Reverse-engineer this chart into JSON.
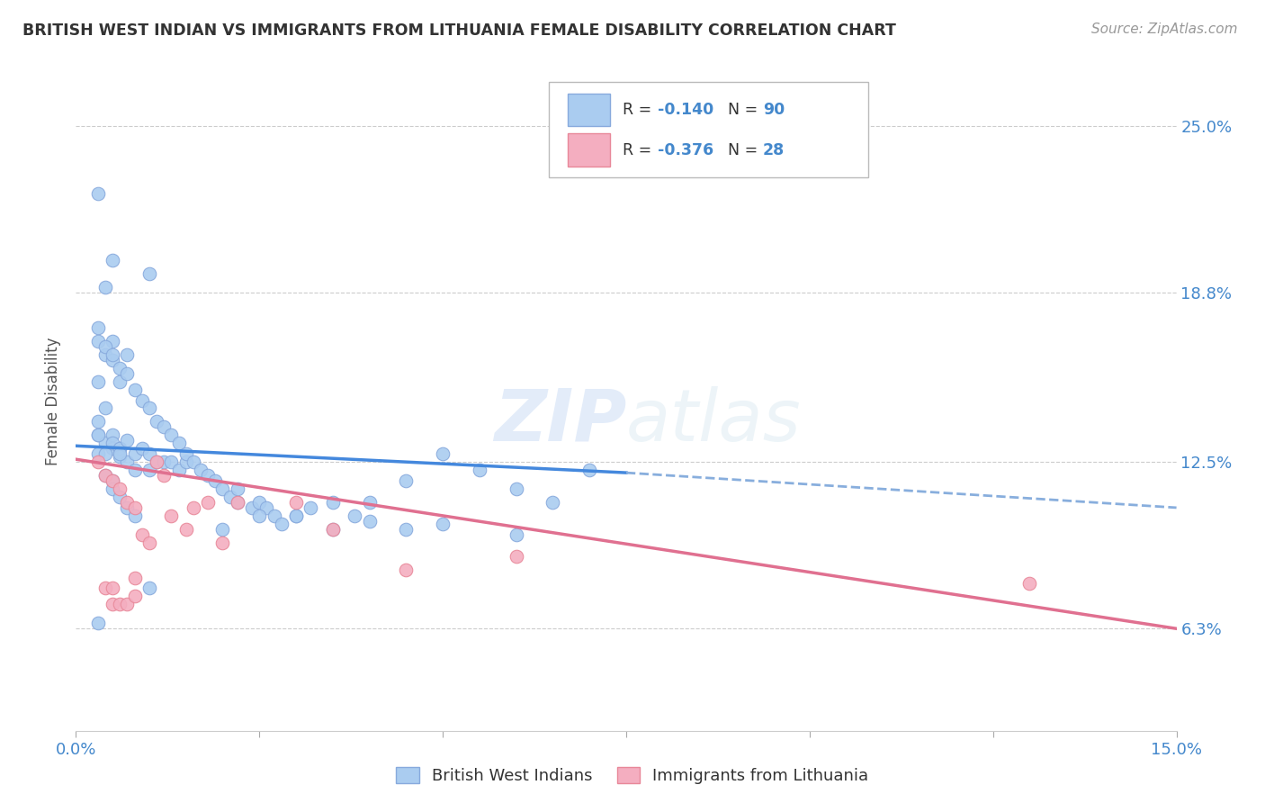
{
  "title": "BRITISH WEST INDIAN VS IMMIGRANTS FROM LITHUANIA FEMALE DISABILITY CORRELATION CHART",
  "source": "Source: ZipAtlas.com",
  "ylabel": "Female Disability",
  "xlim": [
    0.0,
    0.15
  ],
  "ylim": [
    0.025,
    0.27
  ],
  "ytick_positions": [
    0.063,
    0.125,
    0.188,
    0.25
  ],
  "ytick_labels": [
    "6.3%",
    "12.5%",
    "18.8%",
    "25.0%"
  ],
  "grid_color": "#cccccc",
  "background_color": "#ffffff",
  "watermark_zip": "ZIP",
  "watermark_atlas": "atlas",
  "series1_name": "British West Indians",
  "series1_color": "#aaccf0",
  "series1_edge_color": "#88aadd",
  "series2_name": "Immigrants from Lithuania",
  "series2_color": "#f4aec0",
  "series2_edge_color": "#e88899",
  "series1_x": [
    0.003,
    0.005,
    0.004,
    0.01,
    0.003,
    0.004,
    0.003,
    0.004,
    0.005,
    0.005,
    0.006,
    0.007,
    0.003,
    0.004,
    0.005,
    0.006,
    0.003,
    0.003,
    0.003,
    0.004,
    0.005,
    0.005,
    0.006,
    0.006,
    0.007,
    0.007,
    0.008,
    0.008,
    0.009,
    0.01,
    0.01,
    0.011,
    0.012,
    0.013,
    0.014,
    0.015,
    0.003,
    0.004,
    0.005,
    0.006,
    0.007,
    0.008,
    0.009,
    0.01,
    0.011,
    0.012,
    0.013,
    0.014,
    0.015,
    0.016,
    0.017,
    0.018,
    0.019,
    0.02,
    0.021,
    0.022,
    0.022,
    0.024,
    0.025,
    0.026,
    0.027,
    0.028,
    0.03,
    0.032,
    0.035,
    0.038,
    0.04,
    0.045,
    0.05,
    0.055,
    0.06,
    0.065,
    0.07,
    0.003,
    0.01,
    0.02,
    0.025,
    0.03,
    0.035,
    0.04,
    0.045,
    0.05,
    0.06,
    0.006,
    0.004,
    0.005,
    0.005,
    0.006,
    0.007,
    0.008
  ],
  "series1_y": [
    0.225,
    0.2,
    0.19,
    0.195,
    0.175,
    0.165,
    0.155,
    0.145,
    0.17,
    0.163,
    0.155,
    0.165,
    0.135,
    0.132,
    0.13,
    0.13,
    0.128,
    0.135,
    0.14,
    0.128,
    0.135,
    0.132,
    0.13,
    0.127,
    0.133,
    0.125,
    0.128,
    0.122,
    0.13,
    0.128,
    0.122,
    0.125,
    0.125,
    0.125,
    0.122,
    0.125,
    0.17,
    0.168,
    0.165,
    0.16,
    0.158,
    0.152,
    0.148,
    0.145,
    0.14,
    0.138,
    0.135,
    0.132,
    0.128,
    0.125,
    0.122,
    0.12,
    0.118,
    0.115,
    0.112,
    0.11,
    0.115,
    0.108,
    0.11,
    0.108,
    0.105,
    0.102,
    0.105,
    0.108,
    0.11,
    0.105,
    0.11,
    0.118,
    0.128,
    0.122,
    0.115,
    0.11,
    0.122,
    0.065,
    0.078,
    0.1,
    0.105,
    0.105,
    0.1,
    0.103,
    0.1,
    0.102,
    0.098,
    0.128,
    0.12,
    0.118,
    0.115,
    0.112,
    0.108,
    0.105
  ],
  "series2_x": [
    0.003,
    0.004,
    0.005,
    0.006,
    0.007,
    0.008,
    0.009,
    0.01,
    0.011,
    0.012,
    0.013,
    0.015,
    0.016,
    0.018,
    0.02,
    0.022,
    0.03,
    0.035,
    0.045,
    0.06,
    0.004,
    0.005,
    0.005,
    0.006,
    0.007,
    0.13,
    0.008,
    0.008
  ],
  "series2_y": [
    0.125,
    0.12,
    0.118,
    0.115,
    0.11,
    0.108,
    0.098,
    0.095,
    0.125,
    0.12,
    0.105,
    0.1,
    0.108,
    0.11,
    0.095,
    0.11,
    0.11,
    0.1,
    0.085,
    0.09,
    0.078,
    0.078,
    0.072,
    0.072,
    0.072,
    0.08,
    0.082,
    0.075
  ],
  "trend1_x0": 0.0,
  "trend1_x1": 0.075,
  "trend1_y0": 0.131,
  "trend1_y1": 0.121,
  "trend1_dash_x0": 0.075,
  "trend1_dash_x1": 0.15,
  "trend1_dash_y0": 0.121,
  "trend1_dash_y1": 0.108,
  "trend2_x0": 0.0,
  "trend2_x1": 0.15,
  "trend2_y0": 0.126,
  "trend2_y1": 0.063,
  "trend1_color": "#4488dd",
  "trend1_dash_color": "#88aedd",
  "trend2_color": "#e07090",
  "marker_size": 110
}
